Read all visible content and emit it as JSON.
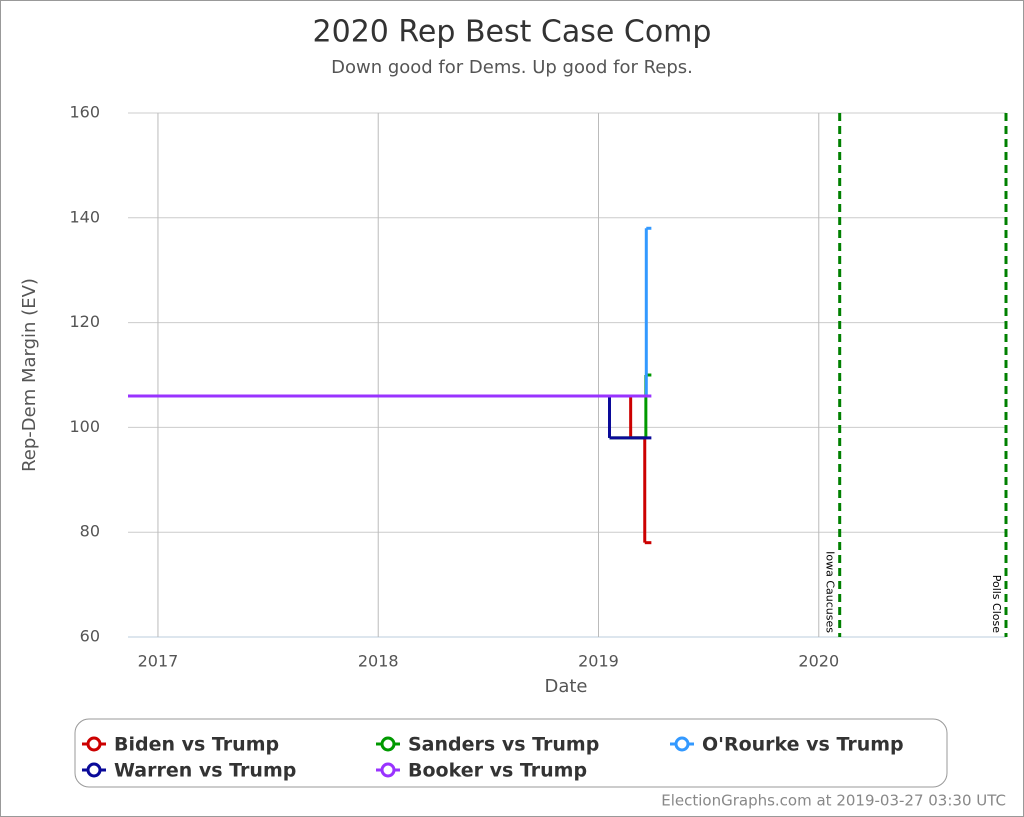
{
  "chart_data": {
    "type": "step",
    "title": "2020 Rep Best Case Comp",
    "subtitle": "Down good for Dems. Up good for Reps.",
    "x_label": "Date",
    "y_label": "Rep-Dem Margin (EV)",
    "xlim": [
      2016.864,
      2020.85
    ],
    "xticks": [
      2017,
      2018,
      2019,
      2020
    ],
    "ylim": [
      60,
      160
    ],
    "yticks": [
      60,
      80,
      100,
      120,
      140,
      160
    ],
    "grid": true,
    "series": [
      {
        "name": "Biden vs Trump",
        "color": "#cc0000",
        "x": [
          2016.864,
          2019.146,
          2019.21,
          2019.24
        ],
        "values": [
          106,
          98,
          78,
          78
        ]
      },
      {
        "name": "Sanders vs Trump",
        "color": "#009900",
        "x": [
          2016.864,
          2019.05,
          2019.215,
          2019.24
        ],
        "values": [
          106,
          98,
          110,
          110
        ]
      },
      {
        "name": "O'Rourke vs Trump",
        "color": "#3399ff",
        "x": [
          2016.864,
          2019.217,
          2019.24
        ],
        "values": [
          106,
          138,
          138
        ]
      },
      {
        "name": "Warren vs Trump",
        "color": "#0a0a99",
        "x": [
          2016.864,
          2019.05,
          2019.24
        ],
        "values": [
          106,
          98,
          98
        ]
      },
      {
        "name": "Booker vs Trump",
        "color": "#9933ff",
        "x": [
          2016.864,
          2019.24
        ],
        "values": [
          106,
          106
        ]
      }
    ],
    "events": [
      {
        "x": 2020.095,
        "label": "Iowa Caucuses",
        "color": "#008000"
      },
      {
        "x": 2020.85,
        "label": "Polls Close",
        "color": "#008000"
      }
    ],
    "credit": "ElectionGraphs.com at 2019-03-27 03:30 UTC"
  }
}
